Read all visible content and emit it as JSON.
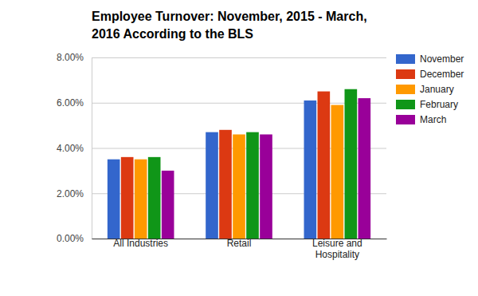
{
  "chart_data": {
    "type": "bar",
    "title": "Employee Turnover: November, 2015 - March, 2016 According to the BLS",
    "categories": [
      "All Industries",
      "Retail",
      "Leisure and Hospitality"
    ],
    "series": [
      {
        "name": "November",
        "color": "#3366cc",
        "values": [
          3.5,
          4.7,
          6.1
        ]
      },
      {
        "name": "December",
        "color": "#dc3912",
        "values": [
          3.6,
          4.8,
          6.5
        ]
      },
      {
        "name": "January",
        "color": "#ff9900",
        "values": [
          3.5,
          4.6,
          5.9
        ]
      },
      {
        "name": "February",
        "color": "#109618",
        "values": [
          3.6,
          4.7,
          6.6
        ]
      },
      {
        "name": "March",
        "color": "#990099",
        "values": [
          3.0,
          4.6,
          6.2
        ]
      }
    ],
    "ylim": [
      0,
      8
    ],
    "yticks": [
      {
        "value": 0,
        "label": "0.00%"
      },
      {
        "value": 2,
        "label": "2.00%"
      },
      {
        "value": 4,
        "label": "4.00%"
      },
      {
        "value": 6,
        "label": "6.00%"
      },
      {
        "value": 8,
        "label": "8.00%"
      }
    ],
    "grid": true,
    "legend": "right"
  }
}
